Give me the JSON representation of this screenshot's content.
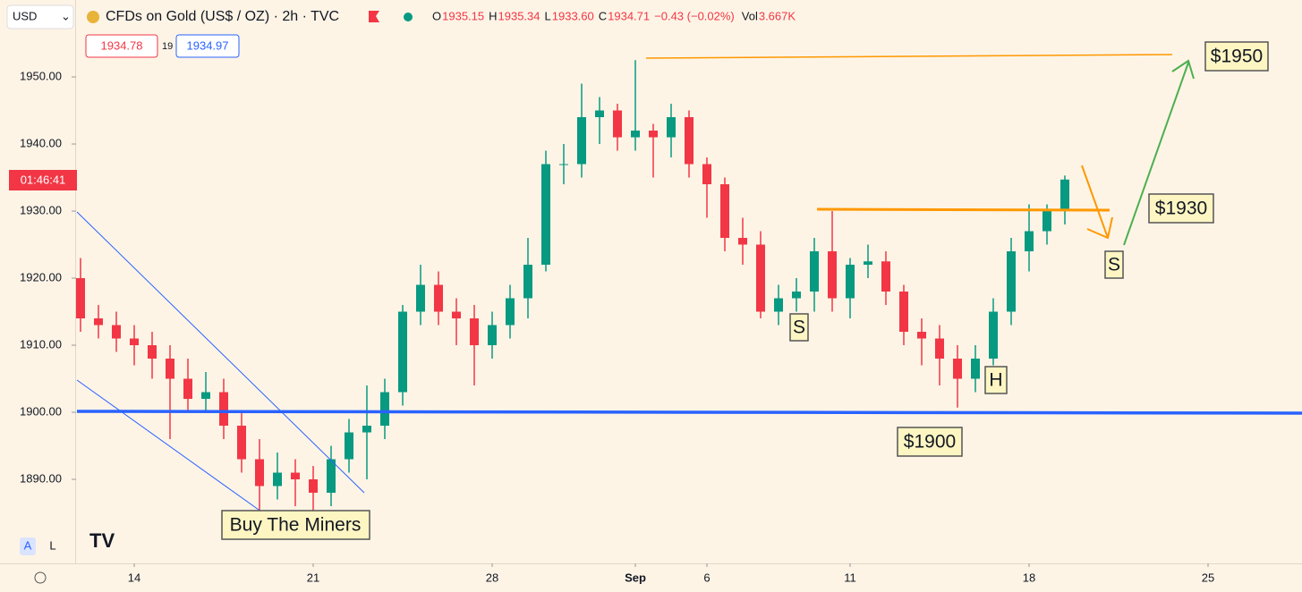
{
  "header": {
    "currency": "USD",
    "symbol": "CFDs on Gold (US$ / OZ) · 2h · TVC",
    "ohlc": [
      {
        "label": "O",
        "value": "1935.15"
      },
      {
        "label": "H",
        "value": "1935.34"
      },
      {
        "label": "L",
        "value": "1933.60"
      },
      {
        "label": "C",
        "value": "1934.71"
      }
    ],
    "change": "−0.43 (−0.02%)",
    "volume_label": "Vol",
    "volume": "3.667K",
    "bid": "1934.78",
    "spread": "19",
    "ask": "1934.97",
    "countdown": "01:46:41",
    "scale_buttons": [
      "A",
      "L"
    ]
  },
  "chart_data": {
    "type": "candlestick",
    "up_color": "#089981",
    "down_color": "#f23645",
    "x": [
      -1.5,
      -1,
      -0.5,
      0,
      0.5,
      1,
      1.5,
      2,
      2.5,
      3,
      3.5,
      4,
      4.5,
      5,
      5.5,
      6,
      6.5,
      7,
      7.5,
      8,
      8.5,
      9,
      9.5,
      10,
      10.5,
      11,
      11.5,
      12,
      12.5,
      13,
      13.5,
      14,
      14.5,
      15,
      15.5,
      16,
      16.5,
      17,
      17.5,
      18,
      18.5,
      19,
      19.5,
      20,
      20.5,
      21,
      21.5,
      22,
      22.5,
      23,
      23.5,
      24,
      24.5,
      25,
      25.5,
      26
    ],
    "open": [
      1920,
      1914,
      1913,
      1911,
      1910,
      1908,
      1905,
      1902,
      1903,
      1898,
      1893,
      1889,
      1891,
      1890,
      1888,
      1893,
      1897,
      1898,
      1903,
      1915,
      1919,
      1915,
      1914,
      1910,
      1913,
      1917,
      1922,
      1937,
      1937,
      1944,
      1945,
      1941,
      1942,
      1941,
      1944,
      1937,
      1934,
      1926,
      1925,
      1915,
      1917,
      1918,
      1924,
      1917,
      1922,
      1922.5,
      1918,
      1912,
      1911,
      1908,
      1905,
      1908,
      1915,
      1924,
      1927,
      1930
    ],
    "high": [
      1923,
      1916,
      1915,
      1913,
      1912,
      1910,
      1908,
      1906,
      1905,
      1900,
      1896,
      1894,
      1893,
      1892,
      1895,
      1899,
      1904,
      1905,
      1916,
      1922,
      1921,
      1917,
      1916,
      1915,
      1919,
      1926,
      1939,
      1940,
      1949,
      1947,
      1946,
      1952.5,
      1943,
      1946,
      1945,
      1938,
      1935,
      1929,
      1927,
      1919,
      1920,
      1926,
      1930,
      1923,
      1925,
      1924,
      1919,
      1914,
      1913,
      1910,
      1910,
      1917,
      1926,
      1931,
      1931,
      1935.3
    ],
    "low": [
      1912,
      1911,
      1909,
      1907,
      1905,
      1896,
      1900,
      1900,
      1896,
      1891,
      1885,
      1887,
      1886,
      1885,
      1886,
      1891,
      1890,
      1896,
      1901,
      1913,
      1913,
      1910,
      1904,
      1908,
      1911,
      1914,
      1921,
      1934,
      1935,
      1940,
      1939,
      1939,
      1935,
      1938,
      1935,
      1929,
      1924,
      1922,
      1914,
      1913,
      1915,
      1915,
      1915,
      1914,
      1920,
      1916,
      1910,
      1907,
      1904,
      1900.7,
      1903,
      1907,
      1913,
      1921,
      1925,
      1928
    ],
    "close": [
      1914,
      1913,
      1911,
      1910,
      1908,
      1905,
      1902,
      1903,
      1898,
      1893,
      1889,
      1891,
      1890,
      1888,
      1893,
      1897,
      1898,
      1903,
      1915,
      1919,
      1915,
      1914,
      1910,
      1913,
      1917,
      1922,
      1937,
      1937,
      1944,
      1945,
      1941,
      1942,
      1941,
      1944,
      1937,
      1934,
      1926,
      1925,
      1915,
      1917,
      1918,
      1924,
      1917,
      1922,
      1922.5,
      1918,
      1912,
      1911,
      1908,
      1905,
      1908,
      1915,
      1924,
      1927,
      1930,
      1934.7
    ],
    "xlim": [
      -1.625,
      32.625
    ],
    "ylim": [
      1877.47,
      1961.47
    ],
    "xticks": [
      {
        "value": 0,
        "label": "14"
      },
      {
        "value": 5,
        "label": "21"
      },
      {
        "value": 10,
        "label": "28"
      },
      {
        "value": 14,
        "label": "Sep"
      },
      {
        "value": 16,
        "label": "6"
      },
      {
        "value": 20,
        "label": "11"
      },
      {
        "value": 25,
        "label": "18"
      },
      {
        "value": 30,
        "label": "25"
      }
    ],
    "yticks": [
      {
        "value": 1890,
        "label": "1890.00"
      },
      {
        "value": 1900,
        "label": "1900.00"
      },
      {
        "value": 1910,
        "label": "1910.00"
      },
      {
        "value": 1920,
        "label": "1920.00"
      },
      {
        "value": 1930,
        "label": "1930.00"
      },
      {
        "value": 1940,
        "label": "1940.00"
      },
      {
        "value": 1950,
        "label": "1950.00"
      }
    ],
    "annotations": [
      "$1950",
      "$1930",
      "S",
      "S",
      "H",
      "$1900",
      "Buy The Miners"
    ]
  }
}
